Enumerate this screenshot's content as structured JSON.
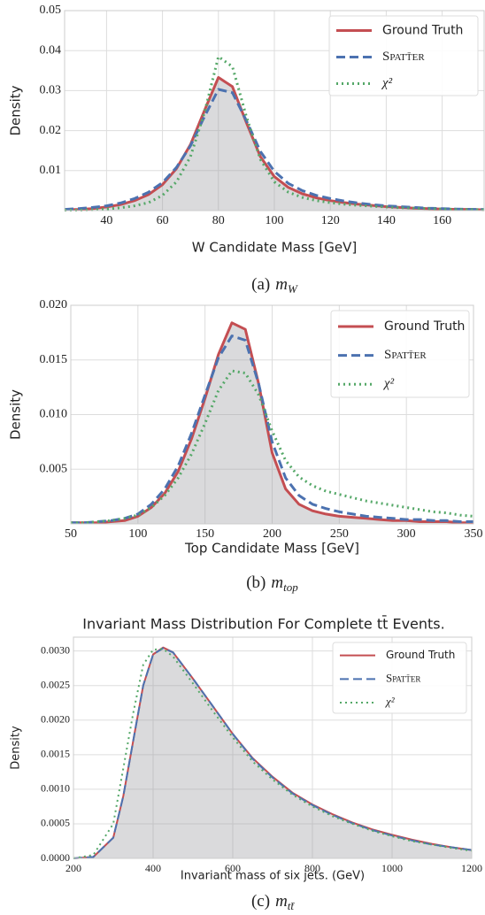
{
  "chart_data": [
    {
      "type": "line",
      "xlabel": "W Candidate Mass [GeV]",
      "ylabel": "Density",
      "x": [
        25,
        30,
        35,
        40,
        45,
        50,
        55,
        60,
        65,
        70,
        75,
        80,
        85,
        90,
        95,
        100,
        105,
        110,
        115,
        120,
        125,
        130,
        135,
        140,
        145,
        150,
        155,
        160,
        165,
        170,
        175
      ],
      "series": [
        {
          "name": "Ground Truth",
          "color": "#c44e52",
          "dash": "solid",
          "values": [
            0.0002,
            0.0003,
            0.0005,
            0.0009,
            0.0015,
            0.0025,
            0.004,
            0.0065,
            0.0105,
            0.0165,
            0.025,
            0.0333,
            0.031,
            0.022,
            0.0135,
            0.0085,
            0.0058,
            0.0042,
            0.0032,
            0.0025,
            0.002,
            0.0016,
            0.0013,
            0.001,
            0.0008,
            0.0006,
            0.0005,
            0.0004,
            0.0003,
            0.0003,
            0.0002
          ]
        },
        {
          "name": "Spatt̄er",
          "color": "#4c72b0",
          "dash": "dashed",
          "values": [
            0.0003,
            0.0005,
            0.0008,
            0.0012,
            0.0019,
            0.003,
            0.0046,
            0.007,
            0.0108,
            0.0162,
            0.0235,
            0.0303,
            0.0295,
            0.0225,
            0.0148,
            0.0098,
            0.0068,
            0.005,
            0.0038,
            0.003,
            0.0024,
            0.0019,
            0.0015,
            0.0012,
            0.001,
            0.0008,
            0.0006,
            0.0005,
            0.0004,
            0.0003,
            0.0003
          ]
        },
        {
          "name": "χ²",
          "color": "#55a868",
          "dash": "dotted",
          "values": [
            0.0001,
            0.0001,
            0.0002,
            0.0004,
            0.0007,
            0.0012,
            0.002,
            0.0038,
            0.0072,
            0.0135,
            0.0245,
            0.0385,
            0.036,
            0.0235,
            0.0128,
            0.0072,
            0.0046,
            0.0033,
            0.0025,
            0.002,
            0.0016,
            0.0013,
            0.0011,
            0.0009,
            0.0007,
            0.0006,
            0.0005,
            0.0004,
            0.0003,
            0.0003,
            0.0002
          ]
        }
      ],
      "xlim": [
        25,
        175
      ],
      "xticks": [
        40,
        60,
        80,
        100,
        120,
        140,
        160
      ],
      "ylim": [
        0,
        0.05
      ],
      "yticks": [
        0.01,
        0.02,
        0.03,
        0.04,
        0.05
      ],
      "grid": true,
      "legend": "upper right",
      "caption": {
        "label": "(a)",
        "symbol": "m",
        "subscript": "W"
      }
    },
    {
      "type": "line",
      "xlabel": "Top Candidate Mass [GeV]",
      "ylabel": "Density",
      "x": [
        50,
        60,
        70,
        80,
        90,
        100,
        110,
        120,
        130,
        140,
        150,
        160,
        170,
        180,
        190,
        200,
        210,
        220,
        230,
        240,
        250,
        260,
        270,
        280,
        290,
        300,
        310,
        320,
        330,
        340,
        350
      ],
      "series": [
        {
          "name": "Ground Truth",
          "color": "#c44e52",
          "dash": "solid",
          "values": [
            0.0001,
            0.0001,
            0.0001,
            0.0002,
            0.0003,
            0.0007,
            0.0015,
            0.0028,
            0.0048,
            0.0078,
            0.0115,
            0.0155,
            0.0184,
            0.0178,
            0.0128,
            0.0065,
            0.0032,
            0.0018,
            0.0012,
            0.0009,
            0.0007,
            0.0006,
            0.0005,
            0.0004,
            0.0003,
            0.0003,
            0.0002,
            0.0002,
            0.0002,
            0.0001,
            0.0001
          ]
        },
        {
          "name": "Spatt̄er",
          "color": "#4c72b0",
          "dash": "dashed",
          "values": [
            0.0001,
            0.0001,
            0.0002,
            0.0003,
            0.0005,
            0.0009,
            0.0018,
            0.0032,
            0.0053,
            0.0083,
            0.0118,
            0.0152,
            0.0172,
            0.0168,
            0.0128,
            0.0075,
            0.0042,
            0.0026,
            0.0018,
            0.0014,
            0.0011,
            0.0009,
            0.0007,
            0.0006,
            0.0005,
            0.0004,
            0.0004,
            0.0003,
            0.0003,
            0.0002,
            0.0002
          ]
        },
        {
          "name": "χ²",
          "color": "#55a868",
          "dash": "dotted",
          "values": [
            0.0001,
            0.0001,
            0.0002,
            0.0003,
            0.0005,
            0.0008,
            0.0015,
            0.0026,
            0.0042,
            0.0064,
            0.0092,
            0.0122,
            0.014,
            0.0138,
            0.0118,
            0.0085,
            0.0058,
            0.0043,
            0.0035,
            0.003,
            0.0027,
            0.0024,
            0.0021,
            0.0019,
            0.0017,
            0.0015,
            0.0013,
            0.0011,
            0.001,
            0.0008,
            0.0007
          ]
        }
      ],
      "xlim": [
        50,
        350
      ],
      "xticks": [
        50,
        100,
        150,
        200,
        250,
        300,
        350
      ],
      "ylim": [
        0,
        0.02
      ],
      "yticks": [
        0.005,
        {
          "value": 0.01,
          "label": "0.010"
        },
        0.015,
        {
          "value": 0.02,
          "label": "0.020"
        }
      ],
      "grid": true,
      "legend": "upper right",
      "caption": {
        "label": "(b)",
        "symbol": "m",
        "subscript": "top"
      }
    },
    {
      "type": "line",
      "title": "Invariant Mass Distribution For Complete tt̄ Events.",
      "xlabel": "Invariant mass of six jets. (GeV)",
      "ylabel": "Density",
      "x": [
        200,
        250,
        300,
        325,
        350,
        375,
        400,
        425,
        450,
        500,
        550,
        600,
        650,
        700,
        750,
        800,
        850,
        900,
        950,
        1000,
        1050,
        1100,
        1150,
        1200
      ],
      "series": [
        {
          "name": "Ground Truth",
          "color": "#c44e52",
          "dash": "solid",
          "values": [
            0,
            2e-05,
            0.0003,
            0.0009,
            0.0017,
            0.0025,
            0.00295,
            0.00305,
            0.00298,
            0.0026,
            0.0022,
            0.0018,
            0.00145,
            0.00118,
            0.00095,
            0.00078,
            0.00064,
            0.00052,
            0.00042,
            0.00034,
            0.00027,
            0.00021,
            0.00016,
            0.00012
          ]
        },
        {
          "name": "Spatt̄er",
          "color": "#4c72b0",
          "dash": "dashed",
          "values": [
            0,
            2e-05,
            0.0003,
            0.0009,
            0.0017,
            0.0025,
            0.00295,
            0.00304,
            0.00298,
            0.0026,
            0.0022,
            0.0018,
            0.00144,
            0.00117,
            0.00094,
            0.00077,
            0.00063,
            0.00051,
            0.00041,
            0.00033,
            0.00026,
            0.0002,
            0.00016,
            0.00012
          ]
        },
        {
          "name": "χ²",
          "color": "#55a868",
          "dash": "dotted",
          "values": [
            0,
            5e-05,
            0.0005,
            0.0013,
            0.0021,
            0.0028,
            0.00302,
            0.00303,
            0.00292,
            0.00253,
            0.00213,
            0.00175,
            0.0014,
            0.00114,
            0.00092,
            0.00075,
            0.00061,
            0.0005,
            0.0004,
            0.00032,
            0.00025,
            0.0002,
            0.00015,
            0.00011
          ]
        }
      ],
      "xlim": [
        200,
        1200
      ],
      "xticks": [
        200,
        400,
        600,
        800,
        1000,
        1200
      ],
      "ylim": [
        0,
        0.0032
      ],
      "yticks": [
        {
          "value": 0,
          "label": "0.0000"
        },
        0.0005,
        {
          "value": 0.001,
          "label": "0.0010"
        },
        0.0015,
        {
          "value": 0.002,
          "label": "0.0020"
        },
        0.0025,
        {
          "value": 0.003,
          "label": "0.0030"
        }
      ],
      "grid": true,
      "legend": "upper right",
      "caption": {
        "label": "(c)",
        "symbol": "m",
        "subscript": "tt̄"
      }
    }
  ]
}
